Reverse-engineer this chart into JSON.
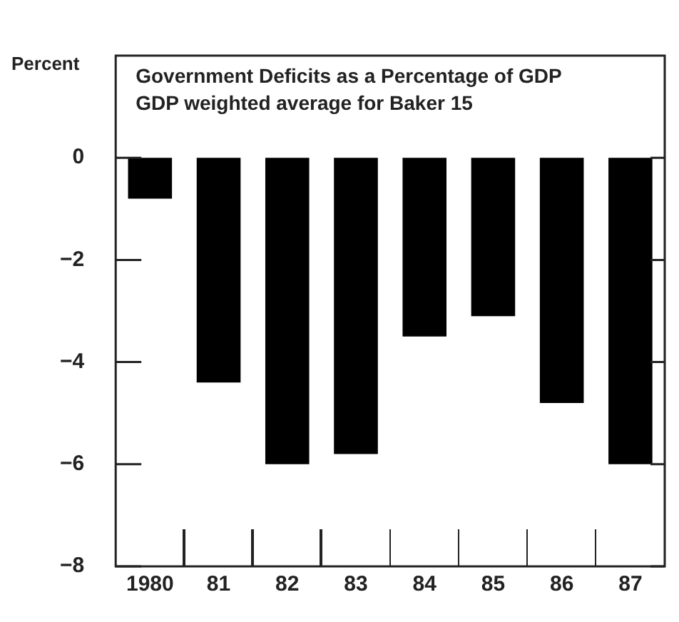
{
  "chart_data": {
    "type": "bar",
    "title": "Government Deficits as a Percentage of GDP",
    "subtitle": "GDP weighted average for Baker 15",
    "ylabel": "Percent",
    "categories": [
      "1980",
      "81",
      "82",
      "83",
      "84",
      "85",
      "86",
      "87"
    ],
    "values": [
      -0.8,
      -4.4,
      -6.0,
      -5.8,
      -3.5,
      -3.1,
      -4.8,
      -6.0
    ],
    "color": "#000000",
    "ylim": [
      -8,
      2
    ],
    "yticks": [
      0,
      -2,
      -4,
      -6,
      -8
    ],
    "grid": false,
    "legend": false
  }
}
